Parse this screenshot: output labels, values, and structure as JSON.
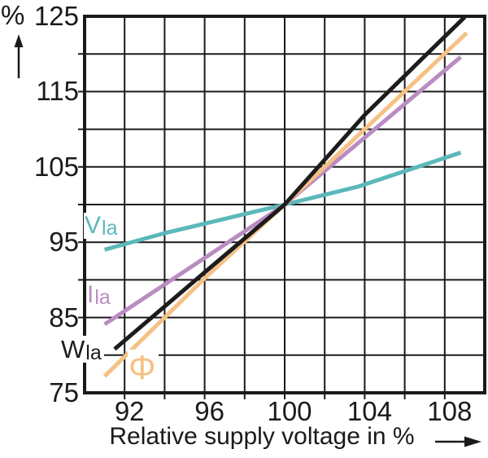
{
  "chart_data": {
    "type": "line",
    "title": "",
    "xlabel": "Relative supply voltage in %",
    "ylabel": "%",
    "xlim": [
      90,
      110
    ],
    "ylim": [
      75,
      125
    ],
    "x_ticks": [
      92,
      96,
      100,
      104,
      108
    ],
    "y_ticks": [
      125,
      115,
      105,
      95,
      85,
      75
    ],
    "grid": {
      "visible": true,
      "x_step": 2,
      "y_step": 5
    },
    "legend_position": "labels-on-curves",
    "colors": {
      "axis": "#1a1a1a",
      "text": "#1a1a1a",
      "lamp_voltage": "#5cb8ba",
      "lamp_current": "#ba8cc2",
      "luminous_flux": "#f5c185",
      "lamp_wattage": "#1c1c1c"
    },
    "series": [
      {
        "name": "V_la",
        "label_main": "V",
        "label_sub": "la",
        "color": "#5cb8ba",
        "points": [
          [
            91,
            94
          ],
          [
            94,
            96.2
          ],
          [
            97,
            98.1
          ],
          [
            100,
            100
          ],
          [
            103.7,
            102.4
          ],
          [
            108.8,
            106.9
          ]
        ]
      },
      {
        "name": "I_la",
        "label_main": "I",
        "label_sub": "la",
        "color": "#ba8cc2",
        "points": [
          [
            91,
            84.1
          ],
          [
            96,
            92.9
          ],
          [
            100,
            100
          ],
          [
            104,
            108.9
          ],
          [
            108.8,
            119.6
          ]
        ]
      },
      {
        "name": "Phi",
        "label_main": "Φ",
        "label_sub": "",
        "color": "#f5c185",
        "points": [
          [
            91,
            77.2
          ],
          [
            96,
            90.2
          ],
          [
            100,
            100
          ],
          [
            104,
            110
          ],
          [
            109.1,
            122.8
          ]
        ]
      },
      {
        "name": "W_la",
        "label_main": "W",
        "label_sub": "la",
        "color": "#1c1c1c",
        "points": [
          [
            91.5,
            80.8
          ],
          [
            96,
            91
          ],
          [
            100,
            100
          ],
          [
            104,
            111.9
          ],
          [
            109,
            124.9
          ]
        ]
      }
    ]
  }
}
